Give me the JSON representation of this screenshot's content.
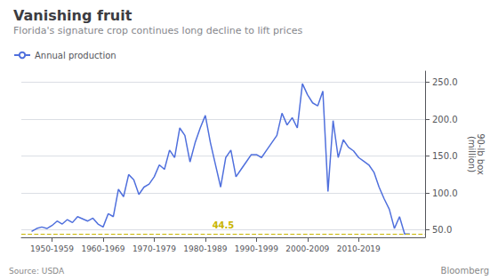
{
  "chart_data": {
    "type": "line",
    "title": "Vanishing fruit",
    "subtitle": "Florida's signature crop continues long decline to lift prices",
    "ylabel": "90-lb box\n(million)",
    "source": "Source: USDA",
    "watermark": "Bloomberg",
    "legend": "top",
    "grid": "y",
    "x": [
      1946,
      1947,
      1948,
      1949,
      1950,
      1951,
      1952,
      1953,
      1954,
      1955,
      1956,
      1957,
      1958,
      1959,
      1960,
      1961,
      1962,
      1963,
      1964,
      1965,
      1966,
      1967,
      1968,
      1969,
      1970,
      1971,
      1972,
      1973,
      1974,
      1975,
      1976,
      1977,
      1978,
      1979,
      1980,
      1981,
      1982,
      1983,
      1984,
      1985,
      1986,
      1987,
      1988,
      1989,
      1990,
      1991,
      1992,
      1993,
      1994,
      1995,
      1996,
      1997,
      1998,
      1999,
      2000,
      2001,
      2002,
      2003,
      2004,
      2005,
      2006,
      2007,
      2008,
      2009,
      2010,
      2011,
      2012,
      2013,
      2014,
      2015,
      2016,
      2017,
      2018,
      2019,
      2020
    ],
    "series": [
      {
        "name": "Annual production",
        "values": [
          48,
          52,
          54,
          52,
          56,
          62,
          58,
          64,
          60,
          68,
          65,
          62,
          66,
          58,
          54,
          72,
          68,
          105,
          95,
          125,
          118,
          98,
          108,
          112,
          122,
          138,
          132,
          158,
          148,
          188,
          178,
          142,
          168,
          188,
          205,
          168,
          138,
          108,
          148,
          158,
          122,
          132,
          142,
          152,
          152,
          148,
          158,
          168,
          178,
          208,
          192,
          202,
          188,
          248,
          233,
          222,
          218,
          238,
          102,
          198,
          148,
          172,
          162,
          157,
          148,
          143,
          138,
          128,
          108,
          92,
          78,
          52,
          68,
          44.5,
          44.5
        ]
      }
    ],
    "xlim": [
      1944,
      2023
    ],
    "xticks": [
      {
        "value": 1950,
        "label": "1950-1959"
      },
      {
        "value": 1960,
        "label": "1960-1969"
      },
      {
        "value": 1970,
        "label": "1970-1979"
      },
      {
        "value": 1980,
        "label": "1980-1989"
      },
      {
        "value": 1990,
        "label": "1990-1999"
      },
      {
        "value": 2000,
        "label": "2000-2009"
      },
      {
        "value": 2010,
        "label": "2010-2019"
      }
    ],
    "ylim": [
      40,
      265
    ],
    "yticks": [
      {
        "value": 50,
        "label": "50.0"
      },
      {
        "value": 100,
        "label": "100.0"
      },
      {
        "value": 150,
        "label": "150.0"
      },
      {
        "value": 200,
        "label": "200.0"
      },
      {
        "value": 250,
        "label": "250.0"
      }
    ],
    "annotations": [
      {
        "type": "hline",
        "value": 44.5,
        "label": "44.5",
        "color": "#c8b400",
        "line_style": "dashed"
      }
    ]
  }
}
